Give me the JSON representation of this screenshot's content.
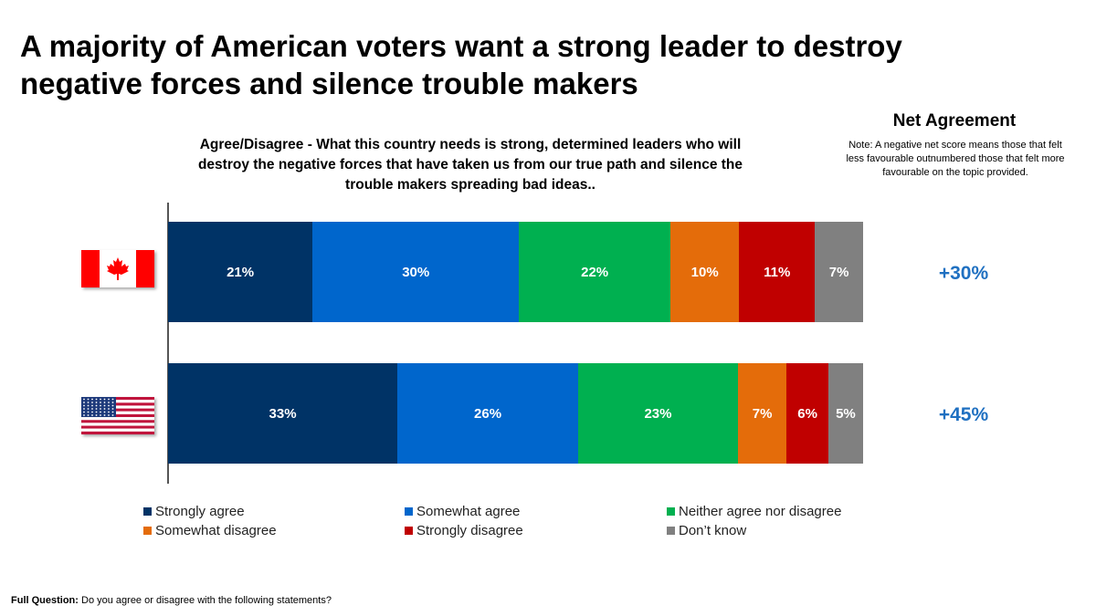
{
  "title": "A majority of American voters want a strong leader to destroy negative forces and silence trouble makers",
  "subtitle": "Agree/Disagree - What this country needs is strong, determined leaders who will destroy the negative forces that have taken us from our true path and silence the trouble makers spreading bad ideas..",
  "net_agreement": {
    "title": "Net Agreement",
    "note": "Note: A negative net score means those that felt less favourable outnumbered those that felt more favourable on the topic provided."
  },
  "footer": {
    "label": "Full Question:",
    "text": " Do you agree or disagree with the following statements?"
  },
  "chart_data": {
    "type": "bar",
    "orientation": "horizontal",
    "stacked": true,
    "categories": [
      "Canada",
      "United States"
    ],
    "series": [
      {
        "name": "Strongly agree",
        "color": "#003366",
        "values": [
          21,
          33
        ]
      },
      {
        "name": "Somewhat agree",
        "color": "#0066cc",
        "values": [
          30,
          26
        ]
      },
      {
        "name": "Neither agree nor disagree",
        "color": "#00b050",
        "values": [
          22,
          23
        ]
      },
      {
        "name": "Somewhat disagree",
        "color": "#e46c0a",
        "values": [
          10,
          7
        ]
      },
      {
        "name": "Strongly disagree",
        "color": "#c00000",
        "values": [
          11,
          6
        ]
      },
      {
        "name": "Don’t know",
        "color": "#808080",
        "values": [
          7,
          5
        ]
      }
    ],
    "net": [
      "+30%",
      "+45%"
    ],
    "legend": "bottom"
  }
}
